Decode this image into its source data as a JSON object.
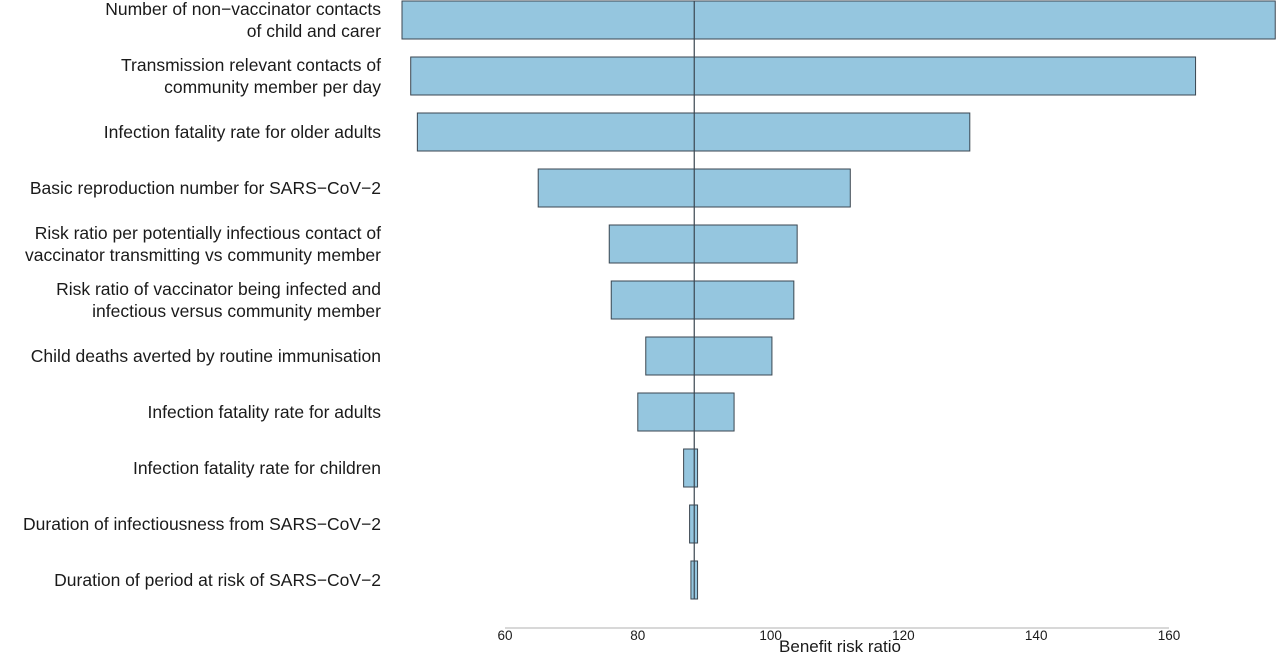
{
  "chart_data": {
    "type": "bar",
    "orientation": "horizontal",
    "subtype": "tornado",
    "xlabel": "Benefit risk ratio",
    "ylabel": "",
    "xlim": [
      60,
      172
    ],
    "xticks": [
      60,
      80,
      100,
      120,
      140,
      160
    ],
    "baseline": 88.5,
    "grid": false,
    "legend": "none",
    "bar_color": "#95c6df",
    "parameters": [
      {
        "label": [
          "Number of non−vaccinator contacts",
          "of child and carer"
        ],
        "low": 44,
        "high": 176
      },
      {
        "label": [
          "Transmission relevant contacts of",
          "community member per day"
        ],
        "low": 45.8,
        "high": 164
      },
      {
        "label": [
          "Infection fatality rate for older adults"
        ],
        "low": 46.8,
        "high": 130
      },
      {
        "label": [
          "Basic reproduction number for SARS−CoV−2"
        ],
        "low": 65,
        "high": 112
      },
      {
        "label": [
          "Risk ratio per potentially infectious contact of",
          "vaccinator transmitting vs community member"
        ],
        "low": 75.7,
        "high": 104
      },
      {
        "label": [
          "Risk ratio of vaccinator being infected and",
          "infectious versus community member"
        ],
        "low": 76,
        "high": 103.5
      },
      {
        "label": [
          "Child deaths averted by routine immunisation"
        ],
        "low": 81.2,
        "high": 100.2
      },
      {
        "label": [
          "Infection fatality rate for adults"
        ],
        "low": 80,
        "high": 94.5
      },
      {
        "label": [
          "Infection fatality rate for children"
        ],
        "low": 86.9,
        "high": 89
      },
      {
        "label": [
          "Duration of infectiousness from SARS−CoV−2"
        ],
        "low": 87.8,
        "high": 89
      },
      {
        "label": [
          "Duration of period at risk of SARS−CoV−2"
        ],
        "low": 88,
        "high": 89
      }
    ]
  }
}
